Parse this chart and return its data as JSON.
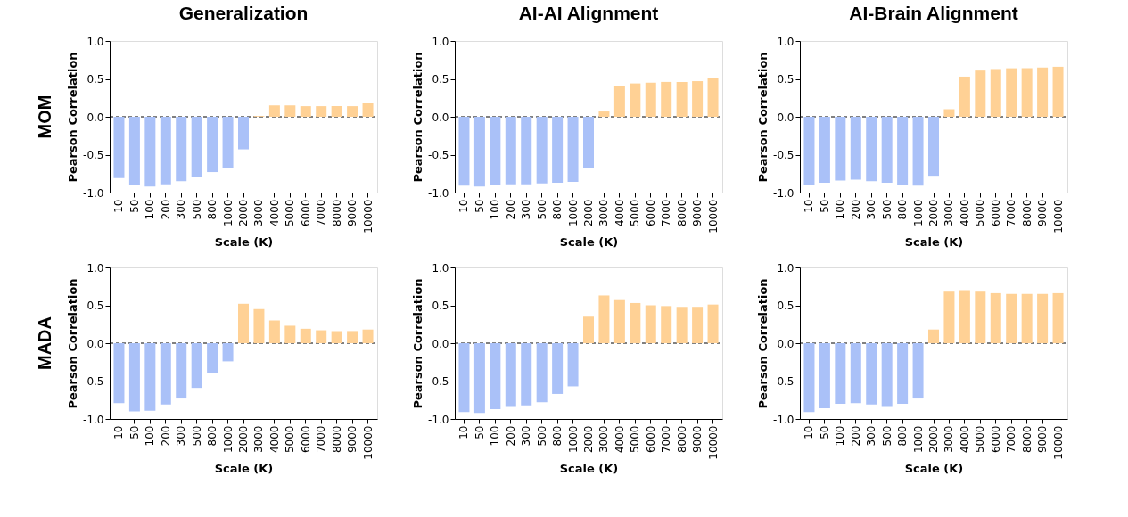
{
  "chart_data": [
    {
      "type": "bar",
      "title": "Generalization",
      "annotations": [
        "MOM"
      ],
      "xlabel": "Scale (K)",
      "ylabel": "Pearson Correlation",
      "categories": [
        "10",
        "50",
        "100",
        "200",
        "300",
        "500",
        "800",
        "1000",
        "2000",
        "3000",
        "4000",
        "5000",
        "6000",
        "7000",
        "8000",
        "9000",
        "10000"
      ],
      "values": [
        -0.81,
        -0.9,
        -0.92,
        -0.89,
        -0.85,
        -0.8,
        -0.73,
        -0.68,
        -0.43,
        0.01,
        0.15,
        0.15,
        0.14,
        0.14,
        0.14,
        0.14,
        0.18
      ],
      "colors": [
        "#aac1f8",
        "#aac1f8",
        "#aac1f8",
        "#aac1f8",
        "#aac1f8",
        "#aac1f8",
        "#aac1f8",
        "#aac1f8",
        "#aac1f8",
        "#ffd195",
        "#ffd195",
        "#ffd195",
        "#ffd195",
        "#ffd195",
        "#ffd195",
        "#ffd195",
        "#ffd195"
      ],
      "ylim": [
        -1,
        1
      ],
      "yticks": [
        {
          "value": -1,
          "label": "-1.0"
        },
        {
          "value": -0.5,
          "label": "-0.5"
        },
        {
          "value": 0,
          "label": "0.0"
        },
        {
          "value": 0.5,
          "label": "0.5"
        },
        {
          "value": 1,
          "label": "1.0"
        }
      ],
      "ref_lines": [
        {
          "axis": "y",
          "value": 0,
          "color": "#000000",
          "line_style": "dashed"
        }
      ],
      "grid": false
    },
    {
      "type": "bar",
      "title": "AI-AI Alignment",
      "xlabel": "Scale (K)",
      "ylabel": "Pearson Correlation",
      "categories": [
        "10",
        "50",
        "100",
        "200",
        "300",
        "500",
        "800",
        "1000",
        "2000",
        "3000",
        "4000",
        "5000",
        "6000",
        "7000",
        "8000",
        "9000",
        "10000"
      ],
      "values": [
        -0.91,
        -0.92,
        -0.9,
        -0.89,
        -0.89,
        -0.88,
        -0.87,
        -0.86,
        -0.68,
        0.07,
        0.41,
        0.44,
        0.45,
        0.46,
        0.46,
        0.47,
        0.51
      ],
      "colors": [
        "#aac1f8",
        "#aac1f8",
        "#aac1f8",
        "#aac1f8",
        "#aac1f8",
        "#aac1f8",
        "#aac1f8",
        "#aac1f8",
        "#aac1f8",
        "#ffd195",
        "#ffd195",
        "#ffd195",
        "#ffd195",
        "#ffd195",
        "#ffd195",
        "#ffd195",
        "#ffd195"
      ],
      "ylim": [
        -1,
        1
      ],
      "yticks": [
        {
          "value": -1,
          "label": "-1.0"
        },
        {
          "value": -0.5,
          "label": "-0.5"
        },
        {
          "value": 0,
          "label": "0.0"
        },
        {
          "value": 0.5,
          "label": "0.5"
        },
        {
          "value": 1,
          "label": "1.0"
        }
      ],
      "ref_lines": [
        {
          "axis": "y",
          "value": 0,
          "color": "#000000",
          "line_style": "dashed"
        }
      ],
      "grid": false
    },
    {
      "type": "bar",
      "title": "AI-Brain Alignment",
      "xlabel": "Scale (K)",
      "ylabel": "Pearson Correlation",
      "categories": [
        "10",
        "50",
        "100",
        "200",
        "300",
        "500",
        "800",
        "1000",
        "2000",
        "3000",
        "4000",
        "5000",
        "6000",
        "7000",
        "8000",
        "9000",
        "10000"
      ],
      "values": [
        -0.9,
        -0.87,
        -0.84,
        -0.83,
        -0.85,
        -0.87,
        -0.9,
        -0.91,
        -0.79,
        0.1,
        0.53,
        0.61,
        0.63,
        0.64,
        0.64,
        0.65,
        0.66
      ],
      "colors": [
        "#aac1f8",
        "#aac1f8",
        "#aac1f8",
        "#aac1f8",
        "#aac1f8",
        "#aac1f8",
        "#aac1f8",
        "#aac1f8",
        "#aac1f8",
        "#ffd195",
        "#ffd195",
        "#ffd195",
        "#ffd195",
        "#ffd195",
        "#ffd195",
        "#ffd195",
        "#ffd195"
      ],
      "ylim": [
        -1,
        1
      ],
      "yticks": [
        {
          "value": -1,
          "label": "-1.0"
        },
        {
          "value": -0.5,
          "label": "-0.5"
        },
        {
          "value": 0,
          "label": "0.0"
        },
        {
          "value": 0.5,
          "label": "0.5"
        },
        {
          "value": 1,
          "label": "1.0"
        }
      ],
      "ref_lines": [
        {
          "axis": "y",
          "value": 0,
          "color": "#000000",
          "line_style": "dashed"
        }
      ],
      "grid": false
    },
    {
      "type": "bar",
      "annotations": [
        "MADA"
      ],
      "xlabel": "Scale (K)",
      "ylabel": "Pearson Correlation",
      "categories": [
        "10",
        "50",
        "100",
        "200",
        "300",
        "500",
        "800",
        "1000",
        "2000",
        "3000",
        "4000",
        "5000",
        "6000",
        "7000",
        "8000",
        "9000",
        "10000"
      ],
      "values": [
        -0.79,
        -0.9,
        -0.89,
        -0.81,
        -0.73,
        -0.59,
        -0.39,
        -0.24,
        0.52,
        0.45,
        0.3,
        0.23,
        0.19,
        0.17,
        0.16,
        0.16,
        0.18
      ],
      "colors": [
        "#aac1f8",
        "#aac1f8",
        "#aac1f8",
        "#aac1f8",
        "#aac1f8",
        "#aac1f8",
        "#aac1f8",
        "#aac1f8",
        "#ffd195",
        "#ffd195",
        "#ffd195",
        "#ffd195",
        "#ffd195",
        "#ffd195",
        "#ffd195",
        "#ffd195",
        "#ffd195"
      ],
      "ylim": [
        -1,
        1
      ],
      "yticks": [
        {
          "value": -1,
          "label": "-1.0"
        },
        {
          "value": -0.5,
          "label": "-0.5"
        },
        {
          "value": 0,
          "label": "0.0"
        },
        {
          "value": 0.5,
          "label": "0.5"
        },
        {
          "value": 1,
          "label": "1.0"
        }
      ],
      "ref_lines": [
        {
          "axis": "y",
          "value": 0,
          "color": "#000000",
          "line_style": "dashed"
        }
      ],
      "grid": false
    },
    {
      "type": "bar",
      "xlabel": "Scale (K)",
      "ylabel": "Pearson Correlation",
      "categories": [
        "10",
        "50",
        "100",
        "200",
        "300",
        "500",
        "800",
        "1000",
        "2000",
        "3000",
        "4000",
        "5000",
        "6000",
        "7000",
        "8000",
        "9000",
        "10000"
      ],
      "values": [
        -0.91,
        -0.92,
        -0.87,
        -0.84,
        -0.82,
        -0.78,
        -0.67,
        -0.57,
        0.35,
        0.63,
        0.58,
        0.53,
        0.5,
        0.49,
        0.48,
        0.48,
        0.51
      ],
      "colors": [
        "#aac1f8",
        "#aac1f8",
        "#aac1f8",
        "#aac1f8",
        "#aac1f8",
        "#aac1f8",
        "#aac1f8",
        "#aac1f8",
        "#ffd195",
        "#ffd195",
        "#ffd195",
        "#ffd195",
        "#ffd195",
        "#ffd195",
        "#ffd195",
        "#ffd195",
        "#ffd195"
      ],
      "ylim": [
        -1,
        1
      ],
      "yticks": [
        {
          "value": -1,
          "label": "-1.0"
        },
        {
          "value": -0.5,
          "label": "-0.5"
        },
        {
          "value": 0,
          "label": "0.0"
        },
        {
          "value": 0.5,
          "label": "0.5"
        },
        {
          "value": 1,
          "label": "1.0"
        }
      ],
      "ref_lines": [
        {
          "axis": "y",
          "value": 0,
          "color": "#000000",
          "line_style": "dashed"
        }
      ],
      "grid": false
    },
    {
      "type": "bar",
      "xlabel": "Scale (K)",
      "ylabel": "Pearson Correlation",
      "categories": [
        "10",
        "50",
        "100",
        "200",
        "300",
        "500",
        "800",
        "1000",
        "2000",
        "3000",
        "4000",
        "5000",
        "6000",
        "7000",
        "8000",
        "9000",
        "10000"
      ],
      "values": [
        -0.91,
        -0.86,
        -0.8,
        -0.79,
        -0.81,
        -0.84,
        -0.8,
        -0.73,
        0.18,
        0.68,
        0.7,
        0.68,
        0.66,
        0.65,
        0.65,
        0.65,
        0.66
      ],
      "colors": [
        "#aac1f8",
        "#aac1f8",
        "#aac1f8",
        "#aac1f8",
        "#aac1f8",
        "#aac1f8",
        "#aac1f8",
        "#aac1f8",
        "#ffd195",
        "#ffd195",
        "#ffd195",
        "#ffd195",
        "#ffd195",
        "#ffd195",
        "#ffd195",
        "#ffd195",
        "#ffd195"
      ],
      "ylim": [
        -1,
        1
      ],
      "yticks": [
        {
          "value": -1,
          "label": "-1.0"
        },
        {
          "value": -0.5,
          "label": "-0.5"
        },
        {
          "value": 0,
          "label": "0.0"
        },
        {
          "value": 0.5,
          "label": "0.5"
        },
        {
          "value": 1,
          "label": "1.0"
        }
      ],
      "ref_lines": [
        {
          "axis": "y",
          "value": 0,
          "color": "#000000",
          "line_style": "dashed"
        }
      ],
      "grid": false
    }
  ]
}
